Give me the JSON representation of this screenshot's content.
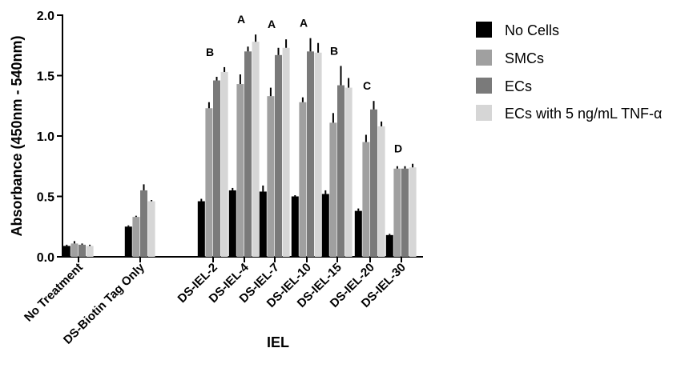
{
  "chart_data": {
    "type": "bar",
    "title": "",
    "xlabel": "IEL",
    "ylabel": "Absorbance (450nm - 540nm)",
    "ylim": [
      0,
      2.0
    ],
    "yticks": [
      "0.0",
      "0.5",
      "1.0",
      "1.5",
      "2.0"
    ],
    "categories": [
      "No Treatment",
      "DS-Biotin Tag Only",
      "DS-IEL-2",
      "DS-IEL-4",
      "DS-IEL-7",
      "DS-IEL-10",
      "DS-IEL-15",
      "DS-IEL-20",
      "DS-IEL-30"
    ],
    "series": [
      {
        "name": "No Cells",
        "color": "#000000",
        "values": [
          0.09,
          0.25,
          0.46,
          0.55,
          0.54,
          0.5,
          0.52,
          0.38,
          0.18
        ],
        "errors": [
          0.01,
          0.01,
          0.02,
          0.02,
          0.05,
          0.01,
          0.03,
          0.02,
          0.01
        ]
      },
      {
        "name": "SMCs",
        "color": "#a0a0a0",
        "values": [
          0.11,
          0.33,
          1.23,
          1.43,
          1.33,
          1.28,
          1.11,
          0.95,
          0.73
        ],
        "errors": [
          0.02,
          0.01,
          0.05,
          0.08,
          0.07,
          0.04,
          0.08,
          0.06,
          0.02
        ]
      },
      {
        "name": "ECs",
        "color": "#7a7a7a",
        "values": [
          0.1,
          0.55,
          1.46,
          1.7,
          1.67,
          1.7,
          1.42,
          1.22,
          0.73
        ],
        "errors": [
          0.01,
          0.05,
          0.03,
          0.04,
          0.06,
          0.11,
          0.16,
          0.07,
          0.02
        ]
      },
      {
        "name": "ECs with 5 ng/mL TNF-α",
        "color": "#d6d6d6",
        "values": [
          0.09,
          0.46,
          1.53,
          1.78,
          1.73,
          1.69,
          1.4,
          1.08,
          0.74
        ],
        "errors": [
          0.01,
          0.01,
          0.04,
          0.06,
          0.07,
          0.08,
          0.08,
          0.04,
          0.03
        ]
      }
    ],
    "annotations": [
      {
        "category": "DS-IEL-2",
        "label": "B"
      },
      {
        "category": "DS-IEL-4",
        "label": "A"
      },
      {
        "category": "DS-IEL-7",
        "label": "A"
      },
      {
        "category": "DS-IEL-10",
        "label": "A"
      },
      {
        "category": "DS-IEL-15",
        "label": "B"
      },
      {
        "category": "DS-IEL-20",
        "label": "C"
      },
      {
        "category": "DS-IEL-30",
        "label": "D"
      }
    ],
    "legend": "right",
    "grid": false
  }
}
